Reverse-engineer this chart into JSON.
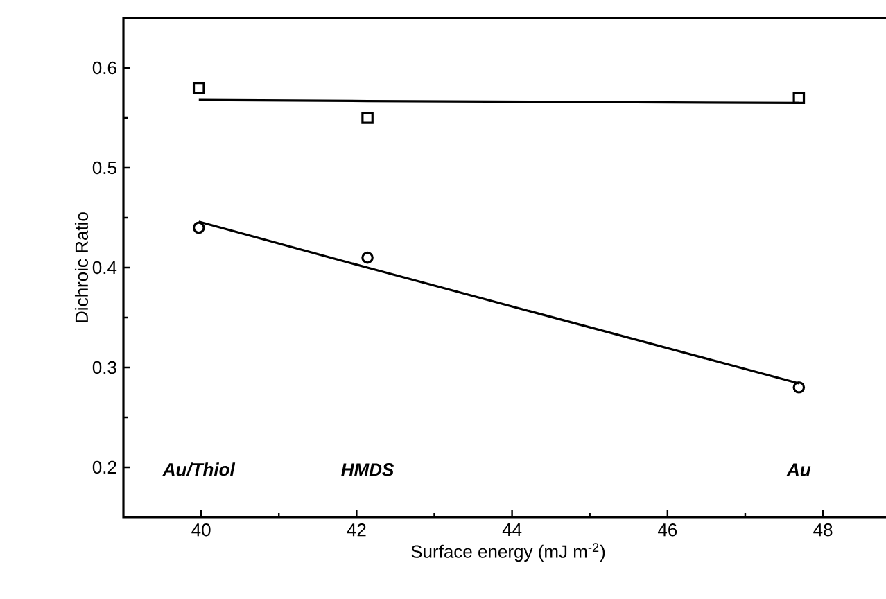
{
  "chart_data": {
    "type": "scatter",
    "xlabel": "Surface energy (mJ m$^{-2}$)",
    "ylabel": "Dichroic Ratio",
    "x": [
      39.97,
      42.14,
      47.69
    ],
    "series": [
      {
        "marker": "square",
        "color": "#000000",
        "values": [
          0.58,
          0.55,
          0.57
        ]
      },
      {
        "marker": "circle",
        "color": "#000000",
        "values": [
          0.44,
          0.41,
          0.28
        ]
      },
      {
        "type": "line",
        "marker": "none",
        "color": "#000000",
        "values": [
          0.568,
          0.567,
          0.565
        ]
      },
      {
        "type": "line",
        "marker": "none",
        "color": "#000000",
        "values": [
          0.446,
          0.4,
          0.284
        ]
      }
    ],
    "xlim": [
      39,
      48.9
    ],
    "ylim": [
      0.15,
      0.65
    ],
    "xticks": [
      40,
      42,
      44,
      46,
      48
    ],
    "yticks": [
      0.2,
      0.3,
      0.4,
      0.5,
      0.6
    ],
    "grid": false,
    "annotations": [
      "Au/Thiol",
      "HMDS",
      "Au"
    ]
  }
}
